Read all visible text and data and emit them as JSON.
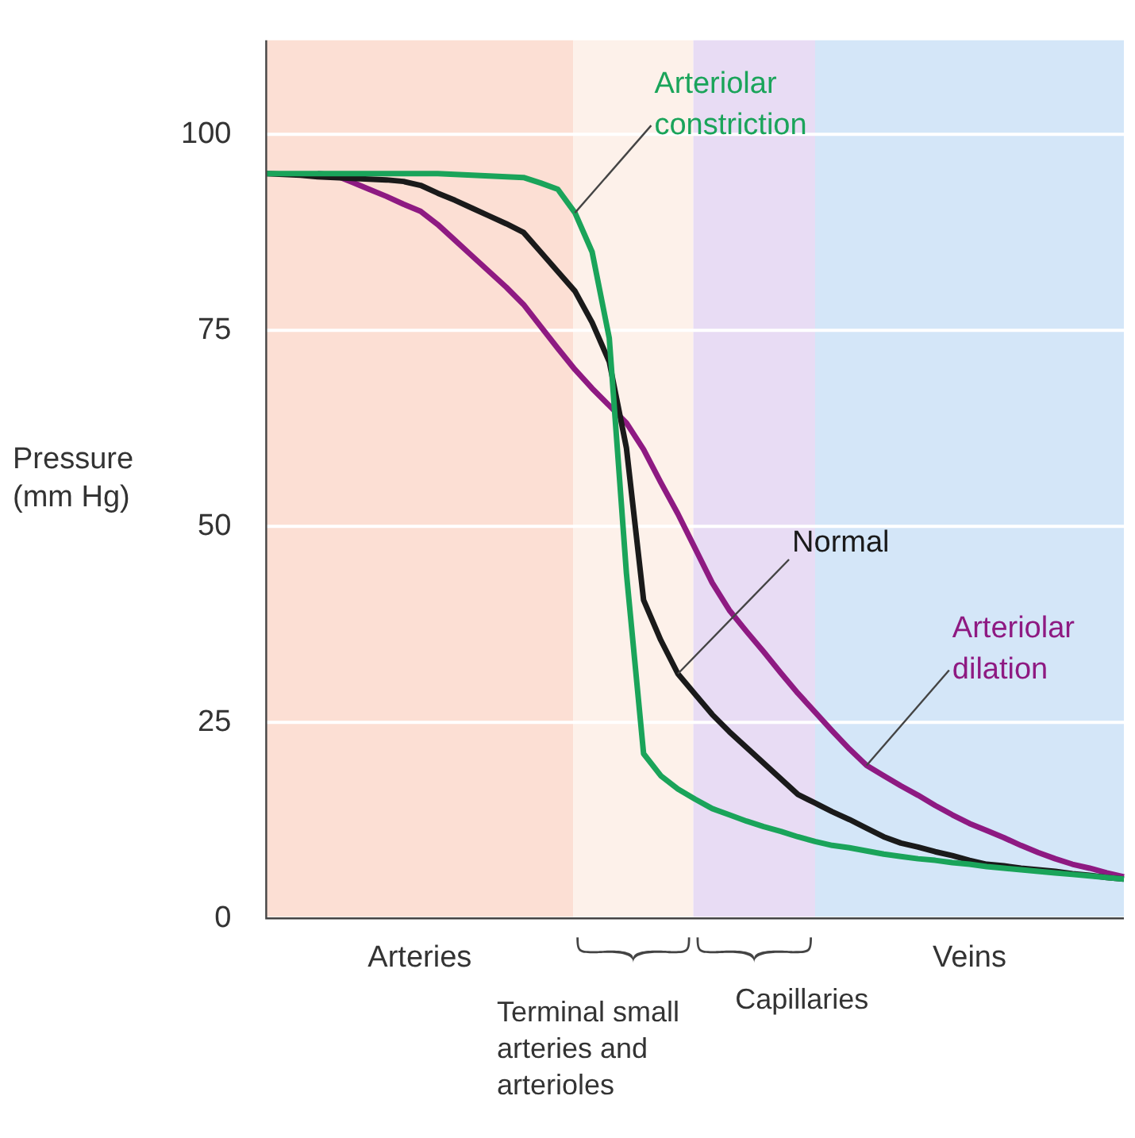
{
  "chart_data": {
    "type": "line",
    "ylabel": "Pressure (mm Hg)",
    "ylim": [
      0,
      112
    ],
    "yticks": [
      0,
      25,
      50,
      75,
      100
    ],
    "grid": "y",
    "legend": false,
    "marker": "none",
    "line_style": "solid",
    "categories": [
      null,
      null,
      null,
      null,
      null,
      null,
      null,
      null,
      null,
      null,
      null,
      null,
      null,
      null,
      null,
      null,
      null,
      null,
      null,
      null,
      null,
      null,
      null,
      null,
      null,
      null,
      null,
      null,
      null,
      null,
      null,
      null,
      null,
      null,
      null,
      null,
      null,
      null,
      null,
      null,
      null,
      null,
      null,
      null,
      null,
      null,
      null,
      null,
      null,
      null,
      null
    ],
    "annotations": [
      "Arteries",
      "Terminal small arteries and arterioles",
      "Capillaries",
      "Veins"
    ],
    "series": [
      {
        "name": "Arteriolar constriction",
        "color": "#1aa45a",
        "values": [
          95,
          95,
          95,
          95,
          95,
          95,
          95,
          95,
          95,
          95,
          95,
          94.9,
          94.8,
          94.7,
          94.6,
          94.5,
          93.8,
          93,
          90,
          85,
          74,
          44,
          21,
          18.2,
          16.5,
          15.2,
          14,
          13.2,
          12.4,
          11.7,
          11.1,
          10.4,
          9.8,
          9.3,
          9,
          8.6,
          8.2,
          7.9,
          7.6,
          7.4,
          7.1,
          6.9,
          6.6,
          6.4,
          6.2,
          6,
          5.8,
          5.6,
          5.4,
          5.2,
          5
        ]
      },
      {
        "name": "Normal",
        "color": "#1a1a1a",
        "values": [
          95,
          94.9,
          94.8,
          94.6,
          94.5,
          94.4,
          94.3,
          94.2,
          94,
          93.5,
          92.5,
          91.6,
          90.6,
          89.6,
          88.6,
          87.5,
          85,
          82.5,
          80,
          76,
          71,
          60,
          40.6,
          35.5,
          31.2,
          28.6,
          26,
          23.8,
          21.8,
          19.8,
          17.8,
          15.8,
          14.7,
          13.6,
          12.6,
          11.5,
          10.4,
          9.6,
          9.1,
          8.5,
          8,
          7.4,
          6.9,
          6.7,
          6.4,
          6.2,
          6,
          5.7,
          5.5,
          5.2,
          5
        ]
      },
      {
        "name": "Arteriolar dilation",
        "color": "#8e1a82",
        "values": [
          null,
          null,
          null,
          95,
          94.8,
          93.9,
          93,
          92.1,
          91.1,
          90.2,
          88.5,
          86.5,
          84.5,
          82.5,
          80.5,
          78.3,
          75.5,
          72.7,
          70,
          67.6,
          65.4,
          63.2,
          59.8,
          55.6,
          51.6,
          47.2,
          42.8,
          39.3,
          36.6,
          34,
          31.3,
          28.7,
          26.3,
          23.9,
          21.6,
          19.5,
          18.2,
          16.9,
          15.7,
          14.4,
          13.2,
          12.1,
          11.2,
          10.3,
          9.3,
          8.4,
          7.6,
          6.9,
          6.4,
          5.8,
          5.3
        ]
      }
    ]
  }
}
